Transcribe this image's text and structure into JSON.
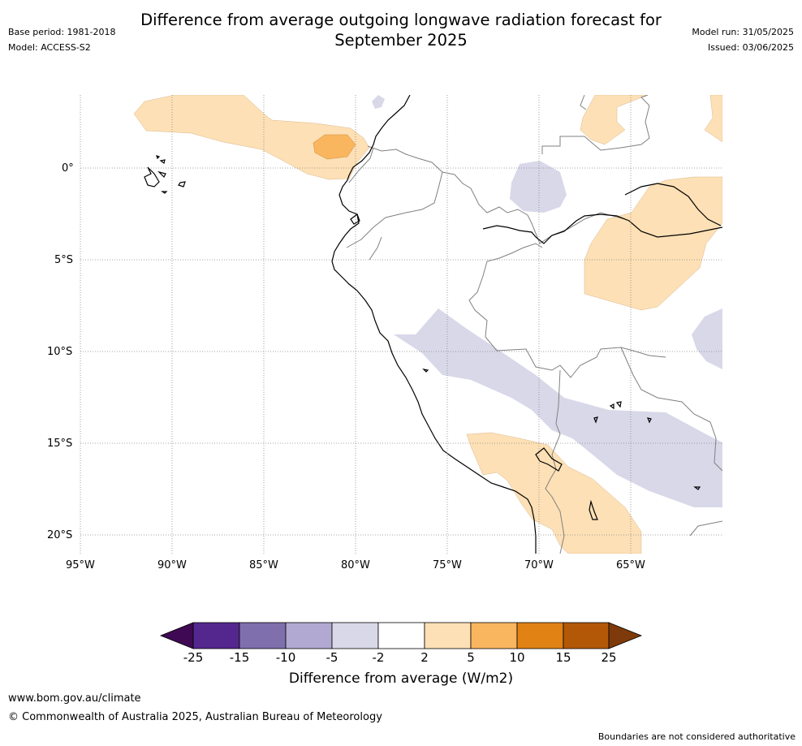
{
  "header": {
    "title_line1": "Difference from average outgoing longwave radiation forecast for",
    "title_line2": "September 2025",
    "base_period": "Base period: 1981-2018",
    "model": "Model: ACCESS-S2",
    "model_run": "Model run: 31/05/2025",
    "issued": "Issued: 03/06/2025"
  },
  "map": {
    "region": "Western South America and eastern Pacific",
    "lat_ticks": [
      "0°",
      "5°S",
      "10°S",
      "15°S",
      "20°S"
    ],
    "lon_ticks": [
      "95°W",
      "90°W",
      "85°W",
      "80°W",
      "75°W",
      "70°W",
      "65°W"
    ],
    "gridlines": "dotted grey",
    "coastline_color": "#000000",
    "border_color": "#808080",
    "anomaly_regions": [
      {
        "name": "eastern-pacific-positive",
        "category": "2 to 5",
        "color": "#fde0b5"
      },
      {
        "name": "eastern-pacific-core",
        "category": "5 to 10",
        "color": "#fab65f"
      },
      {
        "name": "northern-colombia-positive",
        "category": "2 to 5",
        "color": "#fde0b5"
      },
      {
        "name": "western-amazon-positive",
        "category": "2 to 5",
        "color": "#fde0b5"
      },
      {
        "name": "southern-peru-bolivia-positive",
        "category": "2 to 5",
        "color": "#fde0b5"
      },
      {
        "name": "peru-bolivia-negative-band",
        "category": "-5 to -2",
        "color": "#d8d8e9"
      },
      {
        "name": "colombia-negative",
        "category": "-5 to -2",
        "color": "#d8d8e9"
      },
      {
        "name": "eastern-negative",
        "category": "-5 to -2",
        "color": "#d8d8e9"
      }
    ]
  },
  "colorbar": {
    "title": "Difference from average (W/m2)",
    "labels": [
      "-25",
      "-15",
      "-10",
      "-5",
      "-2",
      "2",
      "5",
      "10",
      "15",
      "25"
    ],
    "colors": [
      "#3f0a53",
      "#54278f",
      "#7f6fad",
      "#b1a9d1",
      "#d8d8e9",
      "#ffffff",
      "#fde0b5",
      "#fab65f",
      "#e08214",
      "#b35806",
      "#7e3a0a"
    ]
  },
  "footer": {
    "url": "www.bom.gov.au/climate",
    "copyright": "© Commonwealth of Australia 2025, Australian Bureau of Meteorology",
    "disclaimer": "Boundaries are not considered authoritative"
  }
}
